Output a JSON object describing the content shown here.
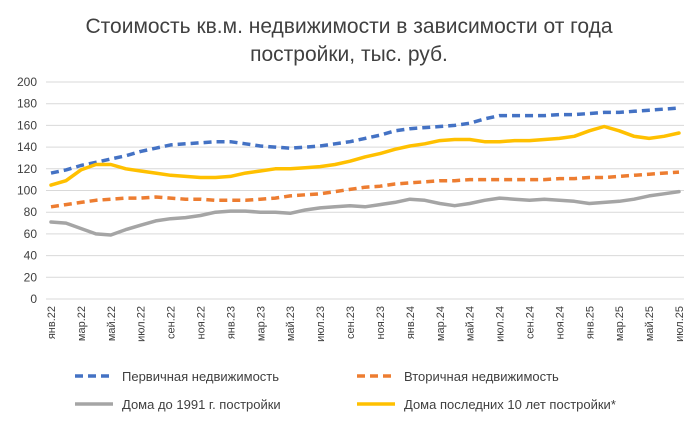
{
  "chart_data": {
    "type": "line",
    "title_lines": [
      "Стоимость кв.м. недвижимости в зависимости от года",
      "постройки, тыс. руб."
    ],
    "xlabel": "",
    "ylabel": "",
    "ylim": [
      0,
      200
    ],
    "yticks": [
      0,
      20,
      40,
      60,
      80,
      100,
      120,
      140,
      160,
      180,
      200
    ],
    "grid": true,
    "legend_position": "bottom",
    "categories": [
      "янв.22",
      "фев.22",
      "мар.22",
      "апр.22",
      "май.22",
      "июн.22",
      "июл.22",
      "авг.22",
      "сен.22",
      "окт.22",
      "ноя.22",
      "дек.22",
      "янв.23",
      "фев.23",
      "мар.23",
      "апр.23",
      "май.23",
      "июн.23",
      "июл.23",
      "авг.23",
      "сен.23",
      "окт.23",
      "ноя.23",
      "дек.23",
      "янв.24",
      "фев.24",
      "мар.24",
      "апр.24",
      "май.24",
      "июн.24",
      "июл.24",
      "авг.24",
      "сен.24",
      "окт.24",
      "ноя.24",
      "дек.24",
      "янв.25",
      "фев.25",
      "мар.25",
      "апр.25",
      "май.25",
      "июн.25",
      "июл.25"
    ],
    "x_tick_labels": [
      "янв.22",
      "мар.22",
      "май.22",
      "июл.22",
      "сен.22",
      "ноя.22",
      "янв.23",
      "мар.23",
      "май.23",
      "июл.23",
      "сен.23",
      "ноя.23",
      "янв.24",
      "мар.24",
      "май.24",
      "июл.24",
      "сен.24",
      "ноя.24",
      "янв.25",
      "мар.25",
      "май.25",
      "июл.25"
    ],
    "series": [
      {
        "name": "Первичная недвижимость",
        "color": "#4472C4",
        "dash": "dashed",
        "values": [
          116,
          119,
          123,
          126,
          129,
          132,
          136,
          139,
          142,
          143,
          144,
          145,
          145,
          143,
          141,
          140,
          139,
          140,
          141,
          143,
          145,
          148,
          151,
          155,
          157,
          158,
          159,
          160,
          162,
          166,
          169,
          169,
          169,
          169,
          170,
          170,
          171,
          172,
          172,
          173,
          174,
          175,
          176
        ]
      },
      {
        "name": "Вторичная недвижимость",
        "color": "#ED7D31",
        "dash": "dashed",
        "values": [
          85,
          87,
          89,
          91,
          92,
          93,
          93,
          94,
          93,
          92,
          92,
          91,
          91,
          91,
          92,
          93,
          95,
          96,
          97,
          99,
          101,
          103,
          104,
          106,
          107,
          108,
          109,
          109,
          110,
          110,
          110,
          110,
          110,
          110,
          111,
          111,
          112,
          112,
          113,
          114,
          115,
          116,
          117
        ]
      },
      {
        "name": "Дома до 1991 г. постройки",
        "color": "#A5A5A5",
        "dash": "solid",
        "values": [
          71,
          70,
          65,
          60,
          59,
          64,
          68,
          72,
          74,
          75,
          77,
          80,
          81,
          81,
          80,
          80,
          79,
          82,
          84,
          85,
          86,
          85,
          87,
          89,
          92,
          91,
          88,
          86,
          88,
          91,
          93,
          92,
          91,
          92,
          91,
          90,
          88,
          89,
          90,
          92,
          95,
          97,
          99
        ]
      },
      {
        "name": "Дома последних 10 лет постройки*",
        "color": "#FFC000",
        "dash": "solid",
        "values": [
          105,
          109,
          119,
          124,
          124,
          120,
          118,
          116,
          114,
          113,
          112,
          112,
          113,
          116,
          118,
          120,
          120,
          121,
          122,
          124,
          127,
          131,
          134,
          138,
          141,
          143,
          146,
          147,
          147,
          145,
          145,
          146,
          146,
          147,
          148,
          150,
          155,
          159,
          155,
          150,
          148,
          150,
          153
        ]
      }
    ]
  }
}
